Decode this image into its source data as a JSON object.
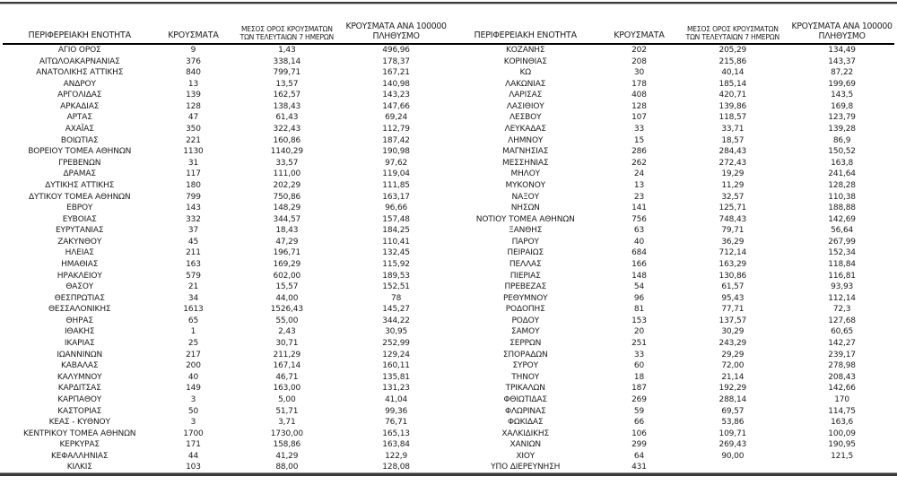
{
  "document": {
    "description_headers": {
      "region": "ΠΕΡΙΦΕΡΕΙΑΚΗ ΕΝΟΤΗΤΑ",
      "cases": "ΚΡΟΥΣΜΑΤΑ",
      "avg7_line1": "ΜΕΣΟΣ ΟΡΟΣ ΚΡΟΥΣΜΑΤΩΝ",
      "avg7_line2": "ΤΩΝ ΤΕΛΕΥΤΑΙΩΝ 7 ΗΜΕΡΩΝ",
      "per100k_line1": "ΚΡΟΥΣΜΑΤΑ ΑΝΑ 100000",
      "per100k_line2": "ΠΛΗΘΥΣΜΟ"
    }
  },
  "tables": [
    {
      "rows": [
        [
          "ΑΓΙΟ ΟΡΟΣ",
          "9",
          "1,43",
          "496,96"
        ],
        [
          "ΑΙΤΩΛΟΑΚΑΡΝΑΝΙΑΣ",
          "376",
          "338,14",
          "178,37"
        ],
        [
          "ΑΝΑΤΟΛΙΚΗΣ ΑΤΤΙΚΗΣ",
          "840",
          "799,71",
          "167,21"
        ],
        [
          "ΑΝΔΡΟΥ",
          "13",
          "13,57",
          "140,98"
        ],
        [
          "ΑΡΓΟΛΙΔΑΣ",
          "139",
          "162,57",
          "143,23"
        ],
        [
          "ΑΡΚΑΔΙΑΣ",
          "128",
          "138,43",
          "147,66"
        ],
        [
          "ΑΡΤΑΣ",
          "47",
          "61,43",
          "69,24"
        ],
        [
          "ΑΧΑΪΑΣ",
          "350",
          "322,43",
          "112,79"
        ],
        [
          "ΒΟΙΩΤΙΑΣ",
          "221",
          "160,86",
          "187,42"
        ],
        [
          "ΒΟΡΕΙΟΥ ΤΟΜΕΑ ΑΘΗΝΩΝ",
          "1130",
          "1140,29",
          "190,98"
        ],
        [
          "ΓΡΕΒΕΝΩΝ",
          "31",
          "33,57",
          "97,62"
        ],
        [
          "ΔΡΑΜΑΣ",
          "117",
          "111,00",
          "119,04"
        ],
        [
          "ΔΥΤΙΚΗΣ ΑΤΤΙΚΗΣ",
          "180",
          "202,29",
          "111,85"
        ],
        [
          "ΔΥΤΙΚΟΥ ΤΟΜΕΑ ΑΘΗΝΩΝ",
          "799",
          "750,86",
          "163,17"
        ],
        [
          "ΕΒΡΟΥ",
          "143",
          "148,29",
          "96,66"
        ],
        [
          "ΕΥΒΟΙΑΣ",
          "332",
          "344,57",
          "157,48"
        ],
        [
          "ΕΥΡΥΤΑΝΙΑΣ",
          "37",
          "18,43",
          "184,25"
        ],
        [
          "ΖΑΚΥΝΘΟΥ",
          "45",
          "47,29",
          "110,41"
        ],
        [
          "ΗΛΕΙΑΣ",
          "211",
          "196,71",
          "132,45"
        ],
        [
          "ΗΜΑΘΙΑΣ",
          "163",
          "169,29",
          "115,92"
        ],
        [
          "ΗΡΑΚΛΕΙΟΥ",
          "579",
          "602,00",
          "189,53"
        ],
        [
          "ΘΑΣΟΥ",
          "21",
          "15,57",
          "152,51"
        ],
        [
          "ΘΕΣΠΡΩΤΙΑΣ",
          "34",
          "44,00",
          "78"
        ],
        [
          "ΘΕΣΣΑΛΟΝΙΚΗΣ",
          "1613",
          "1526,43",
          "145,27"
        ],
        [
          "ΘΗΡΑΣ",
          "65",
          "55,00",
          "344,22"
        ],
        [
          "ΙΘΑΚΗΣ",
          "1",
          "2,43",
          "30,95"
        ],
        [
          "ΙΚΑΡΙΑΣ",
          "25",
          "30,71",
          "252,99"
        ],
        [
          "ΙΩΑΝΝΙΝΩΝ",
          "217",
          "211,29",
          "129,24"
        ],
        [
          "ΚΑΒΑΛΑΣ",
          "200",
          "167,14",
          "160,11"
        ],
        [
          "ΚΑΛΥΜΝΟΥ",
          "40",
          "46,71",
          "135,81"
        ],
        [
          "ΚΑΡΔΙΤΣΑΣ",
          "149",
          "163,00",
          "131,23"
        ],
        [
          "ΚΑΡΠΑΘΟΥ",
          "3",
          "5,00",
          "41,04"
        ],
        [
          "ΚΑΣΤΟΡΙΑΣ",
          "50",
          "51,71",
          "99,36"
        ],
        [
          "ΚΕΑΣ - ΚΥΘΝΟΥ",
          "3",
          "3,71",
          "76,71"
        ],
        [
          "ΚΕΝΤΡΙΚΟΥ ΤΟΜΕΑ ΑΘΗΝΩΝ",
          "1700",
          "1730,00",
          "165,13"
        ],
        [
          "ΚΕΡΚΥΡΑΣ",
          "171",
          "158,86",
          "163,84"
        ],
        [
          "ΚΕΦΑΛΛΗΝΙΑΣ",
          "44",
          "41,29",
          "122,9"
        ],
        [
          "ΚΙΛΚΙΣ",
          "103",
          "88,00",
          "128,08"
        ]
      ]
    },
    {
      "rows": [
        [
          "ΚΟΖΑΝΗΣ",
          "202",
          "205,29",
          "134,49"
        ],
        [
          "ΚΟΡΙΝΘΙΑΣ",
          "208",
          "215,86",
          "143,37"
        ],
        [
          "ΚΩ",
          "30",
          "40,14",
          "87,22"
        ],
        [
          "ΛΑΚΩΝΙΑΣ",
          "178",
          "185,14",
          "199,69"
        ],
        [
          "ΛΑΡΙΣΑΣ",
          "408",
          "420,71",
          "143,5"
        ],
        [
          "ΛΑΣΙΘΙΟΥ",
          "128",
          "139,86",
          "169,8"
        ],
        [
          "ΛΕΣΒΟΥ",
          "107",
          "118,57",
          "123,79"
        ],
        [
          "ΛΕΥΚΑΔΑΣ",
          "33",
          "33,71",
          "139,28"
        ],
        [
          "ΛΗΜΝΟΥ",
          "15",
          "18,57",
          "86,9"
        ],
        [
          "ΜΑΓΝΗΣΙΑΣ",
          "286",
          "284,43",
          "150,52"
        ],
        [
          "ΜΕΣΣΗΝΙΑΣ",
          "262",
          "272,43",
          "163,8"
        ],
        [
          "ΜΗΛΟΥ",
          "24",
          "19,29",
          "241,64"
        ],
        [
          "ΜΥΚΟΝΟΥ",
          "13",
          "11,29",
          "128,28"
        ],
        [
          "ΝΑΞΟΥ",
          "23",
          "32,57",
          "110,38"
        ],
        [
          "ΝΗΣΩΝ",
          "141",
          "125,71",
          "188,88"
        ],
        [
          "ΝΟΤΙΟΥ ΤΟΜΕΑ ΑΘΗΝΩΝ",
          "756",
          "748,43",
          "142,69"
        ],
        [
          "ΞΑΝΘΗΣ",
          "63",
          "79,71",
          "56,64"
        ],
        [
          "ΠΑΡΟΥ",
          "40",
          "36,29",
          "267,99"
        ],
        [
          "ΠΕΙΡΑΙΩΣ",
          "684",
          "712,14",
          "152,34"
        ],
        [
          "ΠΕΛΛΑΣ",
          "166",
          "163,29",
          "118,84"
        ],
        [
          "ΠΙΕΡΙΑΣ",
          "148",
          "130,86",
          "116,81"
        ],
        [
          "ΠΡΕΒΕΖΑΣ",
          "54",
          "61,57",
          "93,93"
        ],
        [
          "ΡΕΘΥΜΝΟΥ",
          "96",
          "95,43",
          "112,14"
        ],
        [
          "ΡΟΔΟΠΗΣ",
          "81",
          "77,71",
          "72,3"
        ],
        [
          "ΡΟΔΟΥ",
          "153",
          "137,57",
          "127,68"
        ],
        [
          "ΣΑΜΟΥ",
          "20",
          "30,29",
          "60,65"
        ],
        [
          "ΣΕΡΡΩΝ",
          "251",
          "243,29",
          "142,27"
        ],
        [
          "ΣΠΟΡΑΔΩΝ",
          "33",
          "29,29",
          "239,17"
        ],
        [
          "ΣΥΡΟΥ",
          "60",
          "72,00",
          "278,98"
        ],
        [
          "ΤΗΝΟΥ",
          "18",
          "21,14",
          "208,43"
        ],
        [
          "ΤΡΙΚΑΛΩΝ",
          "187",
          "192,29",
          "142,66"
        ],
        [
          "ΦΘΙΩΤΙΔΑΣ",
          "269",
          "288,14",
          "170"
        ],
        [
          "ΦΛΩΡΙΝΑΣ",
          "59",
          "69,57",
          "114,75"
        ],
        [
          "ΦΩΚΙΔΑΣ",
          "66",
          "53,86",
          "163,6"
        ],
        [
          "ΧΑΛΚΙΔΙΚΗΣ",
          "106",
          "109,71",
          "100,09"
        ],
        [
          "ΧΑΝΙΩΝ",
          "299",
          "269,43",
          "190,95"
        ],
        [
          "ΧΙΟΥ",
          "64",
          "90,00",
          "121,5"
        ],
        [
          "ΥΠΟ ΔΙΕΡΕΥΝΗΣΗ",
          "431",
          "",
          ""
        ]
      ]
    }
  ]
}
